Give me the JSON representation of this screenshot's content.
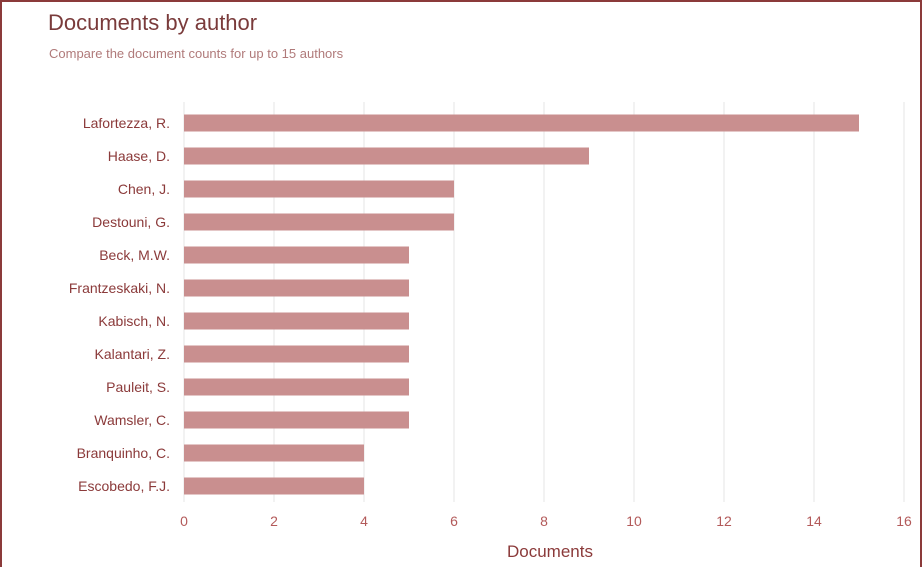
{
  "header": {
    "title": "Documents by author",
    "subtitle": "Compare the document counts for up to 15 authors"
  },
  "colors": {
    "bar": "#c98f8f",
    "text": "#8b3a3a",
    "grid": "#e6e6e6",
    "frame": "#8b3a3a"
  },
  "chart_data": {
    "type": "bar",
    "orientation": "horizontal",
    "title": "Documents by author",
    "subtitle": "Compare the document counts for up to 15 authors",
    "xlabel": "Documents",
    "ylabel": "",
    "xlim": [
      0,
      16
    ],
    "xticks": [
      0,
      2,
      4,
      6,
      8,
      10,
      12,
      14,
      16
    ],
    "grid": true,
    "legend": "none",
    "categories": [
      "Lafortezza, R.",
      "Haase, D.",
      "Chen, J.",
      "Destouni, G.",
      "Beck, M.W.",
      "Frantzeskaki, N.",
      "Kabisch, N.",
      "Kalantari, Z.",
      "Pauleit, S.",
      "Wamsler, C.",
      "Branquinho, C.",
      "Escobedo, F.J."
    ],
    "values": [
      15,
      9,
      6,
      6,
      5,
      5,
      5,
      5,
      5,
      5,
      4,
      4
    ]
  }
}
